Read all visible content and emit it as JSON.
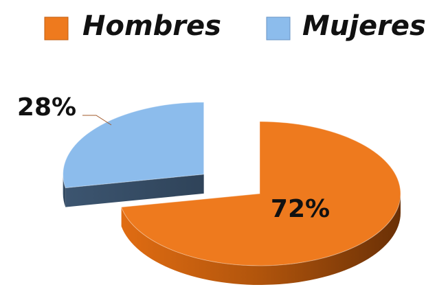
{
  "chart_data": {
    "type": "pie",
    "categories": [
      "Hombres",
      "Mujeres"
    ],
    "values": [
      72,
      28
    ],
    "value_labels": [
      "72%",
      "28%"
    ],
    "colors": [
      "#ee7a1e",
      "#8cbcec"
    ],
    "legend": "top"
  }
}
